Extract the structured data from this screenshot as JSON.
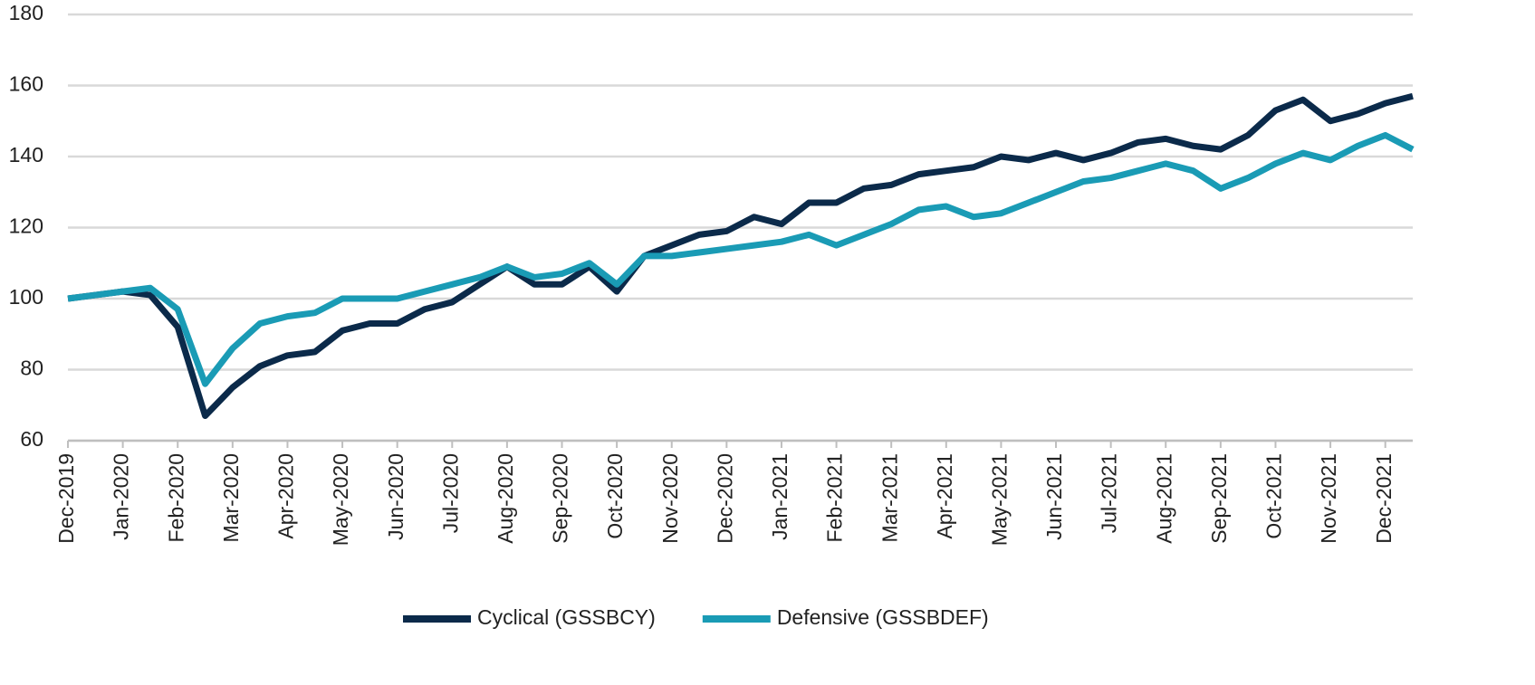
{
  "chart_data": {
    "type": "line",
    "categories": [
      "Dec-2019",
      null,
      "Jan-2020",
      null,
      "Feb-2020",
      null,
      "Mar-2020",
      null,
      "Apr-2020",
      null,
      "May-2020",
      null,
      "Jun-2020",
      null,
      "Jul-2020",
      null,
      "Aug-2020",
      null,
      "Sep-2020",
      null,
      "Oct-2020",
      null,
      "Nov-2020",
      null,
      "Dec-2020",
      null,
      "Jan-2021",
      null,
      "Feb-2021",
      null,
      "Mar-2021",
      null,
      "Apr-2021",
      null,
      "May-2021",
      null,
      "Jun-2021",
      null,
      "Jul-2021",
      null,
      "Aug-2021",
      null,
      "Sep-2021",
      null,
      "Oct-2021",
      null,
      "Nov-2021",
      null,
      "Dec-2021",
      null
    ],
    "series": [
      {
        "name": "Cyclical (GSSBCY)",
        "color": "#0b2a4a",
        "values": [
          100,
          101,
          102,
          101,
          92,
          67,
          75,
          81,
          84,
          85,
          91,
          93,
          93,
          97,
          99,
          104,
          109,
          104,
          104,
          109,
          102,
          112,
          115,
          118,
          119,
          123,
          121,
          127,
          127,
          131,
          132,
          135,
          136,
          137,
          140,
          139,
          141,
          139,
          141,
          144,
          145,
          143,
          142,
          146,
          153,
          156,
          150,
          152,
          155,
          157
        ]
      },
      {
        "name": "Defensive (GSSBDEF)",
        "color": "#1a9bb5",
        "values": [
          100,
          101,
          102,
          103,
          97,
          76,
          86,
          93,
          95,
          96,
          100,
          100,
          100,
          102,
          104,
          106,
          109,
          106,
          107,
          110,
          104,
          112,
          112,
          113,
          114,
          115,
          116,
          118,
          115,
          118,
          121,
          125,
          126,
          123,
          124,
          127,
          130,
          133,
          134,
          136,
          138,
          136,
          131,
          134,
          138,
          141,
          139,
          143,
          146,
          142
        ]
      }
    ],
    "ylim": [
      60,
      180
    ],
    "yticks": [
      60,
      80,
      100,
      120,
      140,
      160,
      180
    ],
    "grid": true
  }
}
